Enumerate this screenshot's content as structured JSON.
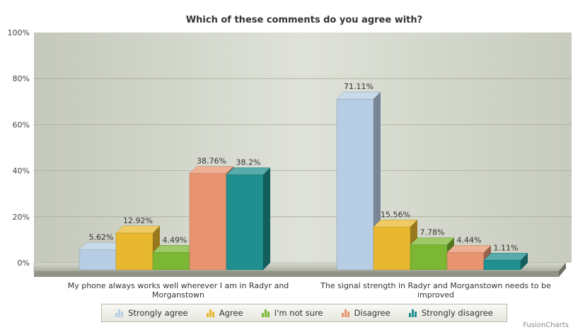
{
  "chart_data": {
    "type": "bar",
    "title": "Which of these comments do you agree with?",
    "categories": [
      "My phone always works well wherever I am in Radyr and Morganstown",
      "The signal strength in Radyr and Morganstown needs to be improved"
    ],
    "category_lines": [
      [
        "My phone always works well wherever I am in Radyr and",
        "Morganstown"
      ],
      [
        "The signal strength in Radyr and Morganstown needs to be",
        "improved"
      ]
    ],
    "series": [
      {
        "name": "Strongly agree",
        "values": [
          5.62,
          71.11
        ],
        "labels": [
          "5.62%",
          "71.11%"
        ],
        "color": "#b7cde3"
      },
      {
        "name": "Agree",
        "values": [
          12.92,
          15.56
        ],
        "labels": [
          "12.92%",
          "15.56%"
        ],
        "color": "#e8b930"
      },
      {
        "name": "I'm not sure",
        "values": [
          4.49,
          7.78
        ],
        "labels": [
          "4.49%",
          "7.78%"
        ],
        "color": "#7cb733"
      },
      {
        "name": "Disagree",
        "values": [
          38.76,
          4.44
        ],
        "labels": [
          "38.76%",
          "4.44%"
        ],
        "color": "#e89470"
      },
      {
        "name": "Strongly disagree",
        "values": [
          38.2,
          1.11
        ],
        "labels": [
          "38.2%",
          "1.11%"
        ],
        "color": "#1f8f8f"
      }
    ],
    "yticks": [
      "0%",
      "20%",
      "40%",
      "60%",
      "80%",
      "100%"
    ],
    "ylim": [
      0,
      100
    ],
    "grid": true,
    "legend_position": "bottom",
    "three_d": true
  },
  "credit": "FusionCharts"
}
